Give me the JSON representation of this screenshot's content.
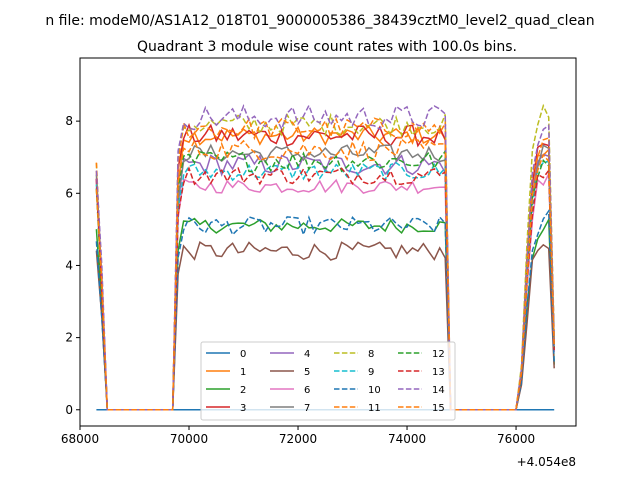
{
  "figure": {
    "suptitle": "n file: modeM0/AS1A12_018T01_9000005386_38439cztM0_level2_quad_clean"
  },
  "chart_data": {
    "type": "line",
    "title": "Quadrant 3 module wise count rates with 100.0s bins.",
    "xlabel": "",
    "ylabel": "",
    "x_offset_label": "+4.054e8",
    "xlim": [
      68000,
      77100
    ],
    "ylim": [
      -0.45,
      9.75
    ],
    "xticks": [
      68000,
      70000,
      72000,
      74000,
      76000
    ],
    "xtick_labels": [
      "68000",
      "70000",
      "72000",
      "74000",
      "76000"
    ],
    "yticks": [
      0,
      2,
      4,
      6,
      8
    ],
    "ytick_labels": [
      "0",
      "2",
      "4",
      "6",
      "8"
    ],
    "grid": false,
    "legend": {
      "location": "lower center",
      "columns": 4
    },
    "segments": [
      {
        "start": 68300,
        "end": 68500,
        "bin": 100
      },
      {
        "start": 69700,
        "end": 74800,
        "bin": 100
      },
      {
        "start": 76000,
        "end": 76700,
        "bin": 100
      }
    ],
    "series": [
      {
        "name": "0",
        "color": "#1f77b4",
        "dash": "solid",
        "levels": [
          0,
          0,
          0
        ],
        "amp": 0
      },
      {
        "name": "1",
        "color": "#ff7f0e",
        "dash": "solid",
        "levels": [
          6.4,
          7.6,
          7.1
        ],
        "amp": 0.25
      },
      {
        "name": "2",
        "color": "#2ca02c",
        "dash": "solid",
        "levels": [
          5.2,
          5.1,
          5.0
        ],
        "amp": 0.2
      },
      {
        "name": "3",
        "color": "#d62728",
        "dash": "solid",
        "levels": [
          6.5,
          7.6,
          7.2
        ],
        "amp": 0.3
      },
      {
        "name": "4",
        "color": "#9467bd",
        "dash": "solid",
        "levels": [
          6.3,
          6.8,
          7.0
        ],
        "amp": 0.3
      },
      {
        "name": "5",
        "color": "#8c564b",
        "dash": "solid",
        "levels": [
          4.6,
          4.4,
          4.6
        ],
        "amp": 0.25
      },
      {
        "name": "6",
        "color": "#e377c2",
        "dash": "solid",
        "levels": [
          6.2,
          6.2,
          6.4
        ],
        "amp": 0.2
      },
      {
        "name": "7",
        "color": "#7f7f7f",
        "dash": "solid",
        "levels": [
          6.3,
          7.1,
          7.2
        ],
        "amp": 0.25
      },
      {
        "name": "8",
        "color": "#bcbd22",
        "dash": "dashed",
        "levels": [
          6.6,
          7.9,
          8.2
        ],
        "amp": 0.3
      },
      {
        "name": "9",
        "color": "#17becf",
        "dash": "dashed",
        "levels": [
          6.1,
          6.6,
          6.8
        ],
        "amp": 0.25
      },
      {
        "name": "10",
        "color": "#1f77b4",
        "dash": "dashed",
        "levels": [
          4.7,
          5.1,
          5.2
        ],
        "amp": 0.25
      },
      {
        "name": "11",
        "color": "#ff7f0e",
        "dash": "dashed",
        "levels": [
          6.6,
          7.8,
          7.4
        ],
        "amp": 0.3
      },
      {
        "name": "12",
        "color": "#2ca02c",
        "dash": "dashed",
        "levels": [
          6.3,
          6.9,
          6.9
        ],
        "amp": 0.3
      },
      {
        "name": "13",
        "color": "#d62728",
        "dash": "dashed",
        "levels": [
          6.2,
          6.5,
          6.6
        ],
        "amp": 0.25
      },
      {
        "name": "14",
        "color": "#9467bd",
        "dash": "dashed",
        "levels": [
          6.9,
          8.1,
          7.6
        ],
        "amp": 0.35
      },
      {
        "name": "15",
        "color": "#ff7f0e",
        "dash": "dashed",
        "levels": [
          6.4,
          7.2,
          7.0
        ],
        "amp": 0.3
      }
    ]
  }
}
